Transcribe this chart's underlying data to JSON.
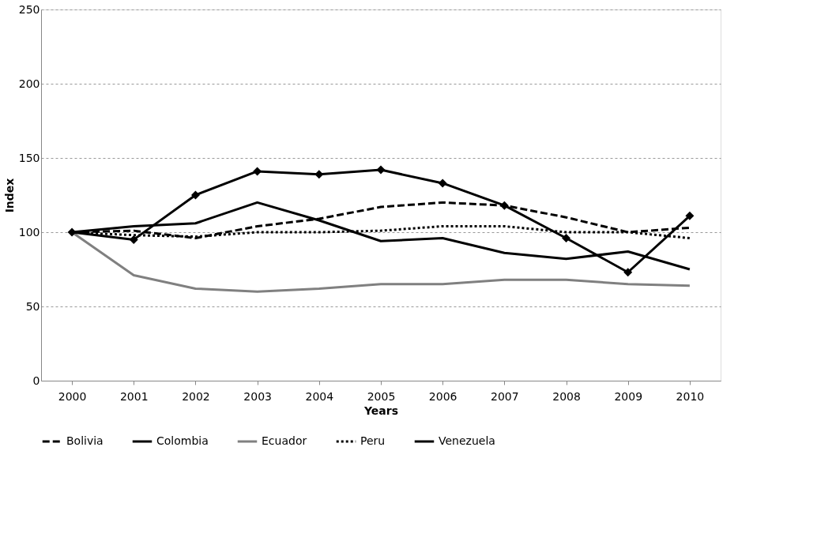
{
  "chart_data": {
    "type": "line",
    "xlabel": "Years",
    "ylabel": "Index",
    "categories": [
      "2000",
      "2001",
      "2002",
      "2003",
      "2004",
      "2005",
      "2006",
      "2007",
      "2008",
      "2009",
      "2010"
    ],
    "ylim": [
      0,
      250
    ],
    "yticks": [
      0,
      50,
      100,
      150,
      200,
      250
    ],
    "grid": "y",
    "legend": "bottom",
    "series": [
      {
        "name": "Bolivia",
        "color": "#000000",
        "line_style": "dashed",
        "marker": "none",
        "values": [
          100,
          101,
          96,
          104,
          109,
          117,
          120,
          118,
          110,
          100,
          103
        ]
      },
      {
        "name": "Colombia",
        "color": "#000000",
        "line_style": "solid",
        "marker": "none",
        "values": [
          100,
          104,
          106,
          120,
          108,
          94,
          96,
          86,
          82,
          87,
          75
        ]
      },
      {
        "name": "Ecuador",
        "color": "#808080",
        "line_style": "solid",
        "marker": "none",
        "values": [
          100,
          71,
          62,
          60,
          62,
          65,
          65,
          68,
          68,
          65,
          64
        ]
      },
      {
        "name": "Peru",
        "color": "#000000",
        "line_style": "dotted",
        "marker": "none",
        "values": [
          100,
          98,
          97,
          100,
          100,
          101,
          104,
          104,
          100,
          100,
          96
        ]
      },
      {
        "name": "Venezuela",
        "color": "#000000",
        "line_style": "solid",
        "marker": "diamond",
        "values": [
          100,
          95,
          125,
          141,
          139,
          142,
          133,
          118,
          96,
          73,
          111
        ]
      }
    ]
  }
}
